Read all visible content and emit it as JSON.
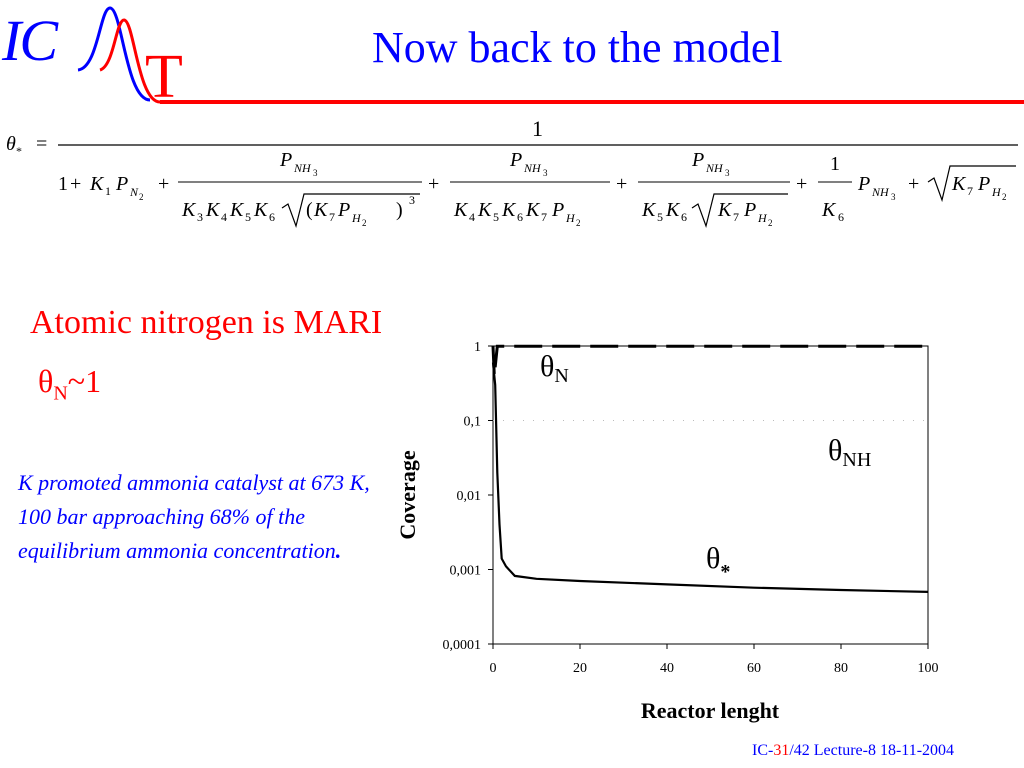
{
  "header": {
    "logo_left": "IC",
    "logo_right": "T",
    "title": "Now back to the model"
  },
  "equation": {
    "lhs": "θ",
    "lhs_sub": "*",
    "numerator": "1",
    "one": "1",
    "plus": "+",
    "K": "K",
    "P": "P",
    "sub_N2": "N",
    "sub_2": "2",
    "sub_NH3": "NH",
    "sub_3": "3",
    "sub_H": "H",
    "idx_1": "1",
    "idx_3": "3",
    "idx_4": "4",
    "idx_5": "5",
    "idx_6": "6",
    "idx_7": "7",
    "paren_open": "(",
    "paren_close": ")",
    "power_3": "3"
  },
  "text": {
    "subtitle": "Atomic nitrogen is MARI",
    "theta_n_symbol": "θ",
    "theta_n_sub": "N",
    "theta_n_value": "~1",
    "note": "K promoted ammonia catalyst at 673 K, 100 bar approaching 68% of the equilibrium ammonia concentration",
    "note_end": "."
  },
  "footer": {
    "prefix": "IC-",
    "page": "31",
    "suffix": "/42  Lecture-8 18-11-2004"
  },
  "colors": {
    "blue": "#0000ff",
    "red": "#ff0000"
  },
  "chart_data": {
    "type": "line",
    "title": "",
    "xlabel": "Reactor lenght",
    "ylabel": "Coverage",
    "xlim": [
      0,
      100
    ],
    "ylim": [
      0.0001,
      1
    ],
    "y_scale": "log",
    "x_ticks": [
      "0",
      "20",
      "40",
      "60",
      "80",
      "100"
    ],
    "x_tick_values": [
      0,
      20,
      40,
      60,
      80,
      100
    ],
    "y_ticks": [
      "0,0001",
      "0,001",
      "0,01",
      "0,1",
      "1"
    ],
    "y_tick_values": [
      0.0001,
      0.001,
      0.01,
      0.1,
      1
    ],
    "grid": false,
    "legend": "none",
    "series": [
      {
        "name": "θN",
        "label_symbol": "θ",
        "label_sub": "N",
        "style": "long-dash",
        "x": [
          0,
          0.3,
          1,
          100
        ],
        "y": [
          1,
          0.4,
          0.99,
          0.99
        ]
      },
      {
        "name": "θNH",
        "label_symbol": "θ",
        "label_sub": "NH",
        "style": "dotted-faint",
        "x": [
          0,
          0.5,
          100
        ],
        "y": [
          0.1,
          0.1,
          0.1
        ]
      },
      {
        "name": "θ*",
        "label_symbol": "θ",
        "label_sub": "*",
        "style": "solid",
        "x": [
          0,
          0.5,
          1,
          1.5,
          2,
          3,
          5,
          10,
          20,
          40,
          60,
          80,
          100
        ],
        "y": [
          0.6,
          0.3,
          0.02,
          0.004,
          0.0014,
          0.0011,
          0.00082,
          0.00075,
          0.0007,
          0.00063,
          0.00057,
          0.00053,
          0.0005
        ]
      }
    ]
  }
}
